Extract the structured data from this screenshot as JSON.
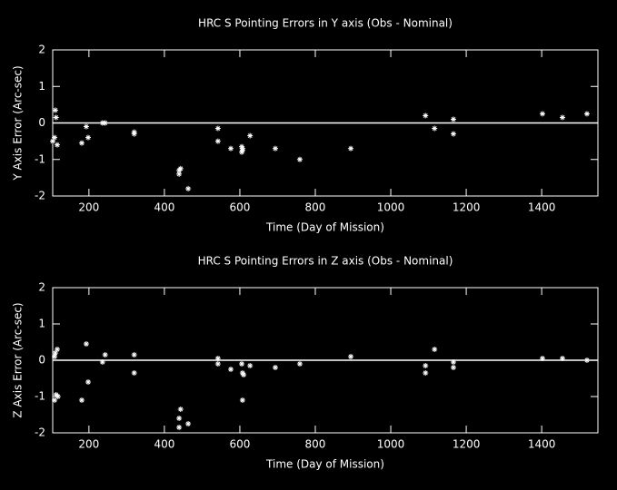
{
  "chart_data": [
    {
      "type": "scatter",
      "title": "HRC S Pointing Errors in Y axis (Obs - Nominal)",
      "x_label": "Time (Day of Mission)",
      "y_label": "Y Axis Error (Arc-sec)",
      "xlim": [
        104,
        1549
      ],
      "ylim": [
        -2,
        2
      ],
      "xticks": [
        200,
        400,
        600,
        800,
        1000,
        1200,
        1400
      ],
      "yticks": [
        -2,
        -1,
        0,
        1,
        2
      ],
      "hline": 0,
      "color": "#ffffff",
      "x": [
        111,
        113,
        109,
        104,
        116,
        181,
        193,
        198,
        236,
        243,
        320,
        320,
        439,
        443,
        439,
        463,
        542,
        542,
        576,
        605,
        607,
        607,
        605,
        627,
        694,
        759,
        894,
        1092,
        1116,
        1166,
        1166,
        1402,
        1455,
        1520
      ],
      "y": [
        0.35,
        0.15,
        -0.4,
        -0.5,
        -0.6,
        -0.55,
        -0.1,
        -0.4,
        0.0,
        0.0,
        -0.25,
        -0.3,
        -1.3,
        -1.25,
        -1.4,
        -1.8,
        -0.15,
        -0.5,
        -0.7,
        -0.65,
        -0.7,
        -0.75,
        -0.8,
        -0.35,
        -0.7,
        -1.0,
        -0.7,
        0.2,
        -0.15,
        0.1,
        -0.3,
        0.25,
        0.15,
        0.25
      ]
    },
    {
      "type": "scatter",
      "title": "HRC S Pointing Errors in  Z axis (Obs - Nominal)",
      "x_label": "Time (Day of Mission)",
      "y_label": "Z Axis Error (Arc-sec)",
      "xlim": [
        104,
        1549
      ],
      "ylim": [
        -2,
        2
      ],
      "xticks": [
        200,
        400,
        600,
        800,
        1000,
        1200,
        1400
      ],
      "yticks": [
        -2,
        -1,
        0,
        1,
        2
      ],
      "hline": 0,
      "color": "#ffffff",
      "x": [
        111,
        116,
        109,
        113,
        109,
        118,
        181,
        193,
        198,
        236,
        243,
        320,
        320,
        439,
        443,
        439,
        463,
        542,
        542,
        576,
        605,
        607,
        610,
        607,
        627,
        694,
        759,
        894,
        1092,
        1092,
        1116,
        1166,
        1166,
        1402,
        1455,
        1520
      ],
      "y": [
        0.2,
        0.3,
        0.1,
        -0.95,
        -1.1,
        -1.0,
        -1.1,
        0.45,
        -0.6,
        -0.05,
        0.15,
        0.15,
        -0.35,
        -1.6,
        -1.35,
        -1.85,
        -1.75,
        0.05,
        -0.1,
        -0.25,
        -0.1,
        -0.35,
        -0.4,
        -1.1,
        -0.15,
        -0.2,
        -0.1,
        0.1,
        -0.15,
        -0.35,
        0.3,
        -0.05,
        -0.2,
        0.05,
        0.05,
        0.0
      ]
    }
  ]
}
